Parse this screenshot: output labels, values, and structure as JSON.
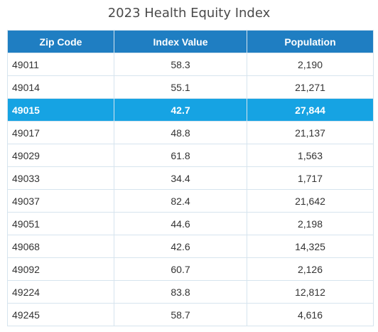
{
  "title": "2023 Health Equity Index",
  "colors": {
    "header_bg": "#1f7ec2",
    "highlight_bg": "#16a3e3",
    "border": "#d6e4ee"
  },
  "highlighted_zip": "49015",
  "chart_data": {
    "type": "table",
    "title": "2023 Health Equity Index",
    "columns": [
      "Zip Code",
      "Index Value",
      "Population"
    ],
    "rows": [
      [
        "49011",
        "58.3",
        "2,190"
      ],
      [
        "49014",
        "55.1",
        "21,271"
      ],
      [
        "49015",
        "42.7",
        "27,844"
      ],
      [
        "49017",
        "48.8",
        "21,137"
      ],
      [
        "49029",
        "61.8",
        "1,563"
      ],
      [
        "49033",
        "34.4",
        "1,717"
      ],
      [
        "49037",
        "82.4",
        "21,642"
      ],
      [
        "49051",
        "44.6",
        "2,198"
      ],
      [
        "49068",
        "42.6",
        "14,325"
      ],
      [
        "49092",
        "60.7",
        "2,126"
      ],
      [
        "49224",
        "83.8",
        "12,812"
      ],
      [
        "49245",
        "58.7",
        "4,616"
      ]
    ]
  }
}
